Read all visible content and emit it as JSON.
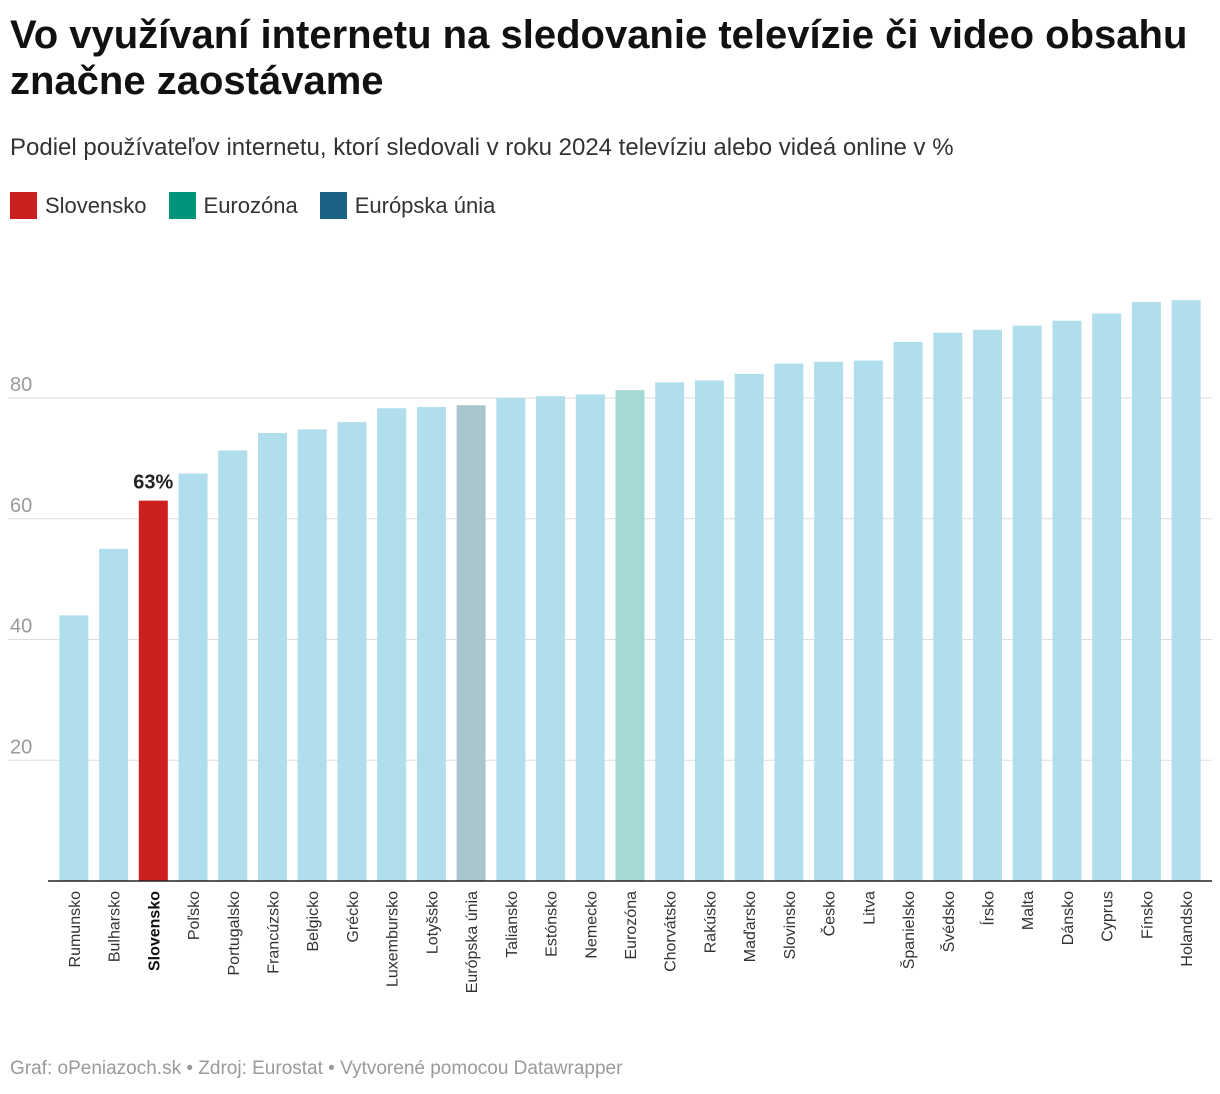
{
  "title": "Vo využívaní internetu na sledovanie televízie či video obsahu značne zaostávame",
  "subtitle": "Podiel používateľov internetu, ktorí sledovali v roku 2024 televíziu alebo videá online v %",
  "legend": [
    {
      "label": "Slovensko",
      "color": "#cc2020"
    },
    {
      "label": "Eurozóna",
      "color": "#00957a"
    },
    {
      "label": "Európska únia",
      "color": "#1a6283"
    }
  ],
  "footer": "Graf: oPeniazoch.sk • Zdroj: Eurostat • Vytvorené pomocou Datawrapper",
  "chart_data": {
    "type": "bar",
    "categories": [
      "Rumunsko",
      "Bulharsko",
      "Slovensko",
      "Poľsko",
      "Portugalsko",
      "Francúzsko",
      "Belgicko",
      "Grécko",
      "Luxembursko",
      "Lotyšsko",
      "Európska únia",
      "Taliansko",
      "Estónsko",
      "Nemecko",
      "Eurozóna",
      "Chorvátsko",
      "Rakúsko",
      "Maďarsko",
      "Slovinsko",
      "Česko",
      "Litva",
      "Španielsko",
      "Švédsko",
      "Írsko",
      "Malta",
      "Dánsko",
      "Cyprus",
      "Fínsko",
      "Holandsko"
    ],
    "values": [
      44,
      55,
      63,
      67.5,
      71.3,
      74.2,
      74.8,
      76,
      78.3,
      78.5,
      78.8,
      80,
      80.3,
      80.6,
      81.3,
      82.6,
      82.9,
      84,
      85.7,
      86,
      86.2,
      89.3,
      90.8,
      91.3,
      92,
      92.8,
      94,
      95.9,
      96.2
    ],
    "highlight": {
      "Slovensko": "#cc2020",
      "Eurozóna": "#a6d9d4",
      "Európska únia": "#a9c6cf"
    },
    "default_color": "#b0deed",
    "data_labels": [
      {
        "category": "Slovensko",
        "text": "63%"
      }
    ],
    "yticks": [
      20,
      40,
      60,
      80
    ],
    "ylim": [
      0,
      100
    ],
    "grid": true
  }
}
